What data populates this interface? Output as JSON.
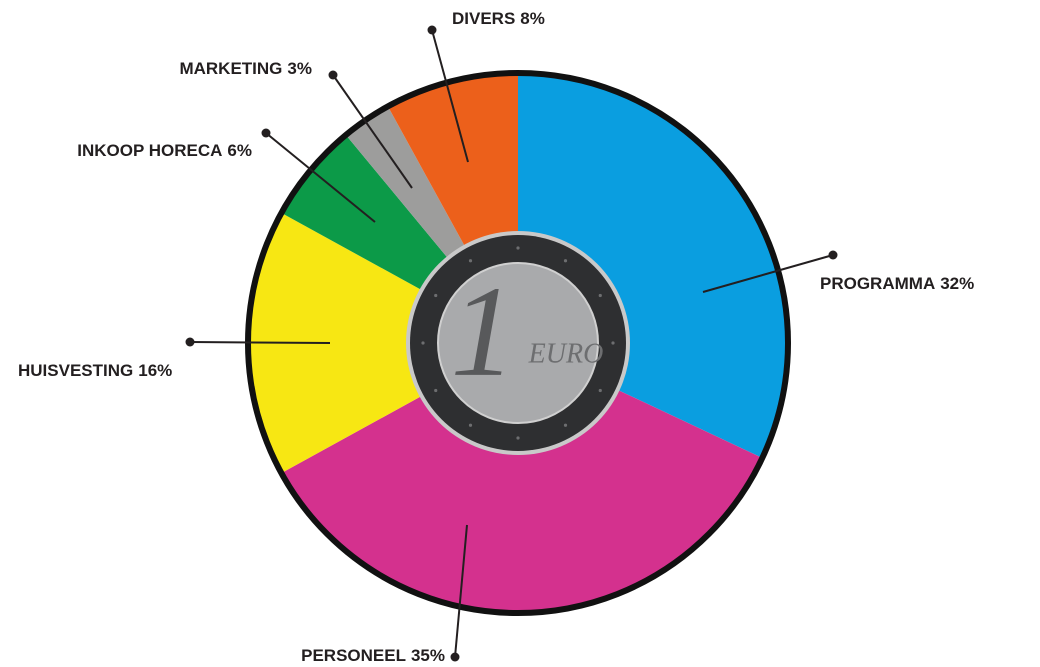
{
  "chart_data": {
    "type": "pie",
    "categories": [
      "PROGRAMMA",
      "PERSONEEL",
      "HUISVESTING",
      "INKOOP HORECA",
      "MARKETING",
      "DIVERS"
    ],
    "values": [
      32,
      35,
      16,
      6,
      3,
      8
    ],
    "value_labels": [
      "32%",
      "35%",
      "16%",
      "6%",
      "3%",
      "8%"
    ],
    "colors": [
      "#0a9ee0",
      "#d4318e",
      "#f7e713",
      "#0c9a48",
      "#9d9d9c",
      "#ec601b"
    ],
    "coin": {
      "numeral": "1",
      "unit": "EURO"
    }
  }
}
